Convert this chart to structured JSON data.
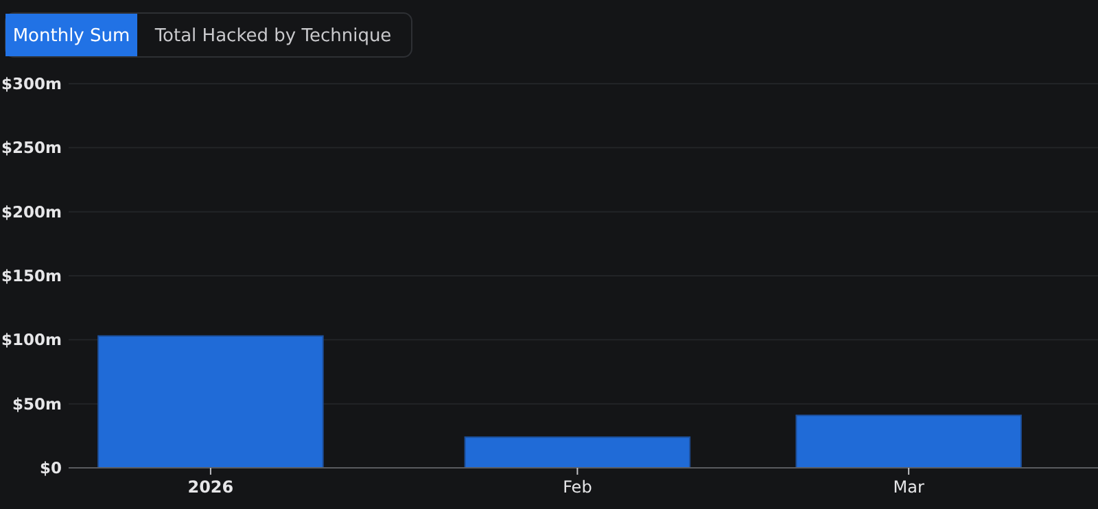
{
  "chart_data": {
    "type": "bar",
    "annotations": [
      "Monthly Sum",
      "Total Hacked by Technique"
    ],
    "x": [
      "2026-01",
      "2026-02",
      "2026-03"
    ],
    "xlim": [
      "2025-12-20",
      "2026-03-17"
    ],
    "xticks": [
      {
        "value": "2026-01",
        "label": "2026"
      },
      {
        "value": "2026-02",
        "label": "Feb"
      },
      {
        "value": "2026-03",
        "label": "Mar"
      }
    ],
    "values": [
      103,
      24,
      41
    ],
    "color": "#206bd7",
    "ylim": [
      0,
      300
    ],
    "yticks": [
      {
        "value": 0,
        "label": "$0"
      },
      {
        "value": 50,
        "label": "$50m"
      },
      {
        "value": 100,
        "label": "$100m"
      },
      {
        "value": 150,
        "label": "$150m"
      },
      {
        "value": 200,
        "label": "$200m"
      },
      {
        "value": 250,
        "label": "$250m"
      },
      {
        "value": 300,
        "label": "$300m"
      }
    ],
    "grid": "y"
  }
}
